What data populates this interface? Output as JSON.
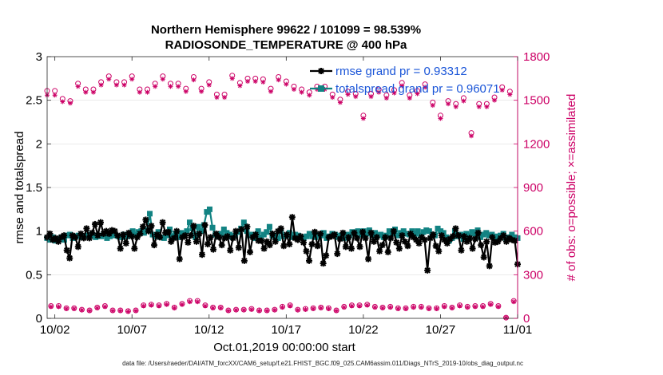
{
  "chart_data": {
    "type": "line",
    "title_line1": "Northern Hemisphere 99622 / 101099 = 98.539%",
    "title_line2": "RADIOSONDE_TEMPERATURE @ 400 hPa",
    "xlabel": "Oct.01,2019 00:00:00 start",
    "ylabel_left": "rmse and totalspread",
    "ylabel_right": "# of obs: o=possible; ×=assimilated",
    "x_tick_labels": [
      "10/02",
      "10/07",
      "10/12",
      "10/17",
      "10/22",
      "10/27",
      "11/01"
    ],
    "x_tick_days": [
      1,
      6,
      11,
      16,
      21,
      26,
      31
    ],
    "xlim_days": [
      0.5,
      31
    ],
    "ylim_left": [
      0,
      3
    ],
    "y_ticks_left": [
      "0",
      "0.5",
      "1",
      "1.5",
      "2",
      "2.5",
      "3"
    ],
    "ylim_right": [
      0,
      1800
    ],
    "y_ticks_right": [
      "0",
      "300",
      "600",
      "900",
      "1200",
      "1500",
      "1800"
    ],
    "legend": [
      "rmse grand pr = 0.93312",
      "totalspread grand pr = 0.96071"
    ],
    "footnote": "data file: /Users/raeder/DAI/ATM_forcXX/CAM6_setup/f.e21.FHIST_BGC.f09_025.CAM6assim.011/Diags_NTrS_2019-10/obs_diag_output.nc",
    "colors": {
      "rmse": "#000000",
      "spread": "#128383",
      "obs": "#cc0066",
      "legend_text": "#1a55d8",
      "grid": "#dddddd"
    },
    "series": [
      {
        "name": "rmse",
        "values": [
          0.93,
          0.97,
          0.9,
          0.92,
          0.88,
          0.93,
          0.95,
          0.78,
          0.69,
          0.95,
          0.93,
          0.82,
          0.97,
          0.92,
          1.03,
          0.92,
          0.98,
          1.08,
          0.95,
          1.1,
          0.97,
          1.0,
          0.97,
          1.01,
          1.0,
          0.95,
          0.8,
          0.96,
          0.86,
          0.98,
          0.94,
          0.8,
          0.93,
          0.97,
          1.05,
          1.13,
          1.0,
          1.06,
          0.84,
          0.96,
          0.93,
          1.1,
          0.98,
          0.99,
          0.88,
          0.92,
          1.0,
          0.68,
          0.93,
          0.95,
          0.87,
          0.95,
          1.06,
          0.88,
          0.97,
          0.73,
          1.07,
          0.85,
          0.93,
          0.79,
          0.97,
          0.93,
          0.84,
          0.92,
          0.94,
          0.78,
          0.92,
          1.0,
          0.81,
          1.02,
          0.66,
          1.05,
          0.76,
          0.93,
          0.96,
          0.89,
          0.89,
          0.8,
          0.88,
          0.84,
          0.97,
          0.88,
          1.0,
          1.03,
          0.83,
          0.96,
          0.85,
          1.16,
          0.92,
          0.9,
          0.94,
          0.87,
          0.77,
          0.66,
          0.85,
          0.99,
          0.83,
          0.97,
          0.63,
          0.72,
          0.93,
          0.94,
          0.96,
          0.74,
          0.91,
          0.98,
          0.82,
          0.93,
          0.8,
          0.98,
          0.92,
          0.82,
          0.99,
          0.92,
          0.68,
          0.98,
          0.88,
          0.93,
          0.77,
          0.84,
          0.93,
          0.76,
          0.92,
          1.0,
          0.87,
          0.8,
          0.95,
          0.88,
          0.83,
          0.97,
          0.93,
          0.9,
          0.86,
          0.93,
          0.9,
          0.55,
          0.92,
          0.96,
          0.83,
          0.77,
          0.95,
          0.9,
          0.86,
          0.91,
          0.94,
          1.03,
          0.95,
          0.78,
          0.94,
          0.88,
          0.92,
          0.8,
          0.91,
          0.98,
          0.84,
          0.7,
          0.88,
          0.6,
          0.93,
          0.87,
          0.88,
          0.92,
          0.95,
          0.88,
          0.92,
          0.9,
          0.89,
          0.62
        ]
      },
      {
        "name": "totalspread",
        "values": [
          0.92,
          0.9,
          0.93,
          0.89,
          0.91,
          0.93,
          0.9,
          0.95,
          0.96,
          0.92,
          0.94,
          0.95,
          0.93,
          0.94,
          0.95,
          0.96,
          0.95,
          0.93,
          0.95,
          0.94,
          0.97,
          0.92,
          0.94,
          0.96,
          0.95,
          0.94,
          0.93,
          0.96,
          0.94,
          0.95,
          1.0,
          0.96,
          0.99,
          1.0,
          0.98,
          1.01,
          1.2,
          0.96,
          0.94,
          0.99,
          0.93,
          0.92,
          0.95,
          1.02,
          0.94,
          0.97,
          0.93,
          0.98,
          0.96,
          1.0,
          1.1,
          1.03,
          0.93,
          1.05,
          1.0,
          1.07,
          1.22,
          1.25,
          1.04,
          0.96,
          0.94,
          0.97,
          1.02,
          0.98,
          0.96,
          0.93,
          0.95,
          0.99,
          1.03,
          1.1,
          1.0,
          0.95,
          0.96,
          0.92,
          1.0,
          0.93,
          0.96,
          0.99,
          1.05,
          0.95,
          0.94,
          0.92,
          1.0,
          0.94,
          0.95,
          0.98,
          0.93,
          0.96,
          0.95,
          0.93,
          0.92,
          0.94,
          0.97,
          0.94,
          0.93,
          0.96,
          0.95,
          0.98,
          0.92,
          0.94,
          0.97,
          0.96,
          0.93,
          0.95,
          0.92,
          0.96,
          0.95,
          0.99,
          0.97,
          1.0,
          0.96,
          1.0,
          0.97,
          1.01,
          0.95,
          0.98,
          0.95,
          0.96,
          0.93,
          0.95,
          1.0,
          0.97,
          1.02,
          0.95,
          0.98,
          1.0,
          0.97,
          0.96,
          1.0,
          0.97,
          1.0,
          0.95,
          0.99,
          1.01,
          1.0,
          0.96,
          0.95,
          1.03,
          1.0,
          0.98,
          0.93,
          0.89,
          0.92,
          1.0,
          0.94,
          0.96,
          0.91,
          0.97,
          0.95,
          0.99,
          0.97,
          1.01,
          0.93,
          0.96,
          0.98,
          0.95,
          0.96,
          0.92,
          0.94,
          0.95,
          0.97,
          0.92,
          0.93,
          0.96,
          0.93,
          0.92
        ]
      },
      {
        "name": "obs possible / assimilated (upper band, 00Z)",
        "x_days": [
          0.5,
          1.0,
          1.5,
          2.0,
          2.5,
          3.0,
          3.5,
          4.0,
          4.5,
          5.0,
          5.5,
          6.0,
          6.5,
          7.0,
          7.5,
          8.0,
          8.5,
          9.0,
          9.5,
          10.0,
          10.5,
          11.0,
          11.5,
          12.0,
          12.5,
          13.0,
          13.5,
          14.0,
          14.5,
          15.0,
          15.5,
          16.0,
          16.5,
          17.0,
          17.5,
          18.0,
          18.5,
          19.0,
          19.5,
          20.0,
          20.5,
          21.0,
          21.5,
          22.0,
          22.5,
          23.0,
          23.5,
          24.0,
          24.5,
          25.0,
          25.5,
          26.0,
          26.5,
          27.0,
          27.5,
          28.0,
          28.5,
          29.0,
          29.5,
          30.0,
          30.5
        ],
        "possible": [
          1565,
          1565,
          1510,
          1495,
          1615,
          1575,
          1575,
          1625,
          1665,
          1625,
          1625,
          1665,
          1575,
          1575,
          1615,
          1665,
          1615,
          1615,
          1580,
          1660,
          1580,
          1625,
          1540,
          1540,
          1670,
          1620,
          1650,
          1650,
          1645,
          1580,
          1660,
          1630,
          1595,
          1575,
          1555,
          1595,
          1595,
          1540,
          1505,
          1560,
          1545,
          1395,
          1545,
          1575,
          1535,
          1570,
          1620,
          1535,
          1565,
          1610,
          1485,
          1395,
          1495,
          1475,
          1515,
          1275,
          1475,
          1475,
          1520,
          1590,
          1560
        ],
        "assimilated": [
          1535,
          1535,
          1490,
          1480,
          1595,
          1555,
          1555,
          1605,
          1645,
          1605,
          1605,
          1645,
          1555,
          1555,
          1595,
          1645,
          1595,
          1595,
          1560,
          1640,
          1560,
          1605,
          1520,
          1520,
          1650,
          1600,
          1630,
          1630,
          1625,
          1560,
          1640,
          1610,
          1575,
          1555,
          1535,
          1575,
          1575,
          1520,
          1485,
          1540,
          1525,
          1375,
          1525,
          1555,
          1515,
          1550,
          1600,
          1515,
          1545,
          1590,
          1465,
          1375,
          1475,
          1455,
          1495,
          1255,
          1455,
          1455,
          1500,
          1570,
          1540
        ]
      },
      {
        "name": "obs possible / assimilated (lower band, 12Z)",
        "x_days": [
          0.75,
          1.25,
          1.75,
          2.25,
          2.75,
          3.25,
          3.75,
          4.25,
          4.75,
          5.25,
          5.75,
          6.25,
          6.75,
          7.25,
          7.75,
          8.25,
          8.75,
          9.25,
          9.75,
          10.25,
          10.75,
          11.25,
          11.75,
          12.25,
          12.75,
          13.25,
          13.75,
          14.25,
          14.75,
          15.25,
          15.75,
          16.25,
          16.75,
          17.25,
          17.75,
          18.25,
          18.75,
          19.25,
          19.75,
          20.25,
          20.75,
          21.25,
          21.75,
          22.25,
          22.75,
          23.25,
          23.75,
          24.25,
          24.75,
          25.25,
          25.75,
          26.25,
          26.75,
          27.25,
          27.75,
          28.25,
          28.75,
          29.25,
          29.75,
          30.25,
          30.75
        ],
        "possible": [
          85,
          85,
          70,
          70,
          60,
          55,
          75,
          85,
          55,
          55,
          50,
          55,
          90,
          95,
          90,
          100,
          75,
          100,
          120,
          120,
          90,
          75,
          75,
          55,
          60,
          60,
          65,
          55,
          55,
          60,
          80,
          90,
          60,
          65,
          70,
          75,
          70,
          55,
          80,
          90,
          90,
          95,
          80,
          75,
          80,
          70,
          70,
          80,
          80,
          70,
          70,
          85,
          75,
          90,
          80,
          85,
          85,
          100,
          85,
          5,
          120
        ],
        "assimilated": [
          80,
          80,
          66,
          66,
          57,
          52,
          71,
          80,
          52,
          52,
          47,
          52,
          85,
          90,
          85,
          95,
          71,
          95,
          114,
          114,
          85,
          71,
          71,
          52,
          57,
          57,
          61,
          52,
          52,
          57,
          76,
          85,
          57,
          61,
          66,
          71,
          66,
          52,
          76,
          85,
          85,
          90,
          76,
          71,
          76,
          66,
          66,
          76,
          76,
          66,
          66,
          80,
          71,
          85,
          76,
          80,
          80,
          95,
          80,
          5,
          114
        ]
      }
    ]
  }
}
